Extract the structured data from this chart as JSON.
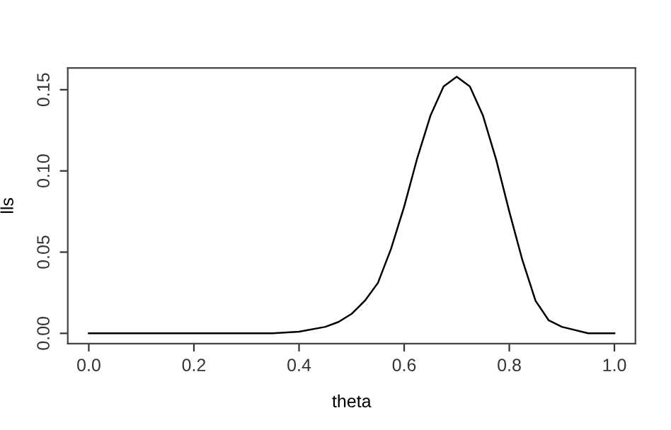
{
  "chart_data": {
    "type": "line",
    "xlabel": "theta",
    "ylabel": "lls",
    "x": [
      0.0,
      0.1,
      0.2,
      0.3,
      0.35,
      0.4,
      0.45,
      0.475,
      0.5,
      0.525,
      0.55,
      0.575,
      0.6,
      0.625,
      0.65,
      0.675,
      0.7,
      0.725,
      0.75,
      0.775,
      0.8,
      0.825,
      0.85,
      0.875,
      0.9,
      0.95,
      1.0
    ],
    "series": [
      {
        "color": "#000000",
        "values": [
          0.0,
          0.0,
          0.0,
          0.0,
          0.0,
          0.001,
          0.004,
          0.007,
          0.012,
          0.02,
          0.031,
          0.052,
          0.078,
          0.108,
          0.134,
          0.152,
          0.158,
          0.152,
          0.134,
          0.107,
          0.075,
          0.045,
          0.02,
          0.008,
          0.004,
          0.0,
          0.0
        ]
      }
    ],
    "xlim": [
      -0.04,
      1.04
    ],
    "ylim": [
      -0.0063,
      0.1634
    ],
    "xticks": [
      {
        "value": 0,
        "label": "0.0"
      },
      0.2,
      0.4,
      0.6,
      0.8,
      {
        "value": 1,
        "label": "1.0"
      }
    ],
    "yticks": [
      {
        "value": 0,
        "label": "0.00"
      },
      0.05,
      {
        "value": 0.1,
        "label": "0.10"
      },
      0.15
    ],
    "grid": false,
    "marker": "none",
    "line_style": "solid"
  }
}
